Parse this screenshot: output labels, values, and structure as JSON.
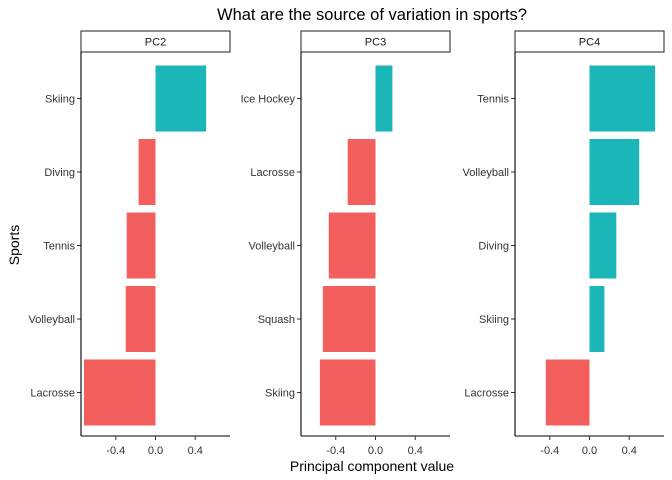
{
  "chart_data": {
    "type": "bar",
    "orientation": "horizontal",
    "faceted": true,
    "title": "What are the source of variation in sports?",
    "xlabel": "Principal component  value",
    "ylabel": "Sports",
    "xlim": [
      -0.75,
      0.75
    ],
    "xticks": [
      -0.4,
      0.0,
      0.4
    ],
    "xtick_labels": [
      "-0.4",
      "0.0",
      "0.4"
    ],
    "grid": false,
    "legend": "none",
    "colors": {
      "positive": "#1ab6b8",
      "negative": "#f25f5c"
    },
    "facets": [
      {
        "name": "PC2",
        "categories": [
          "Skiing",
          "Diving",
          "Tennis",
          "Volleyball",
          "Lacrosse"
        ],
        "values": [
          0.51,
          -0.17,
          -0.29,
          -0.3,
          -0.72
        ]
      },
      {
        "name": "PC3",
        "categories": [
          "Ice Hockey",
          "Lacrosse",
          "Volleyball",
          "Squash",
          "Skiing"
        ],
        "values": [
          0.17,
          -0.28,
          -0.47,
          -0.53,
          -0.56
        ]
      },
      {
        "name": "PC4",
        "categories": [
          "Tennis",
          "Volleyball",
          "Diving",
          "Skiing",
          "Lacrosse"
        ],
        "values": [
          0.66,
          0.5,
          0.27,
          0.15,
          -0.44
        ]
      }
    ]
  }
}
